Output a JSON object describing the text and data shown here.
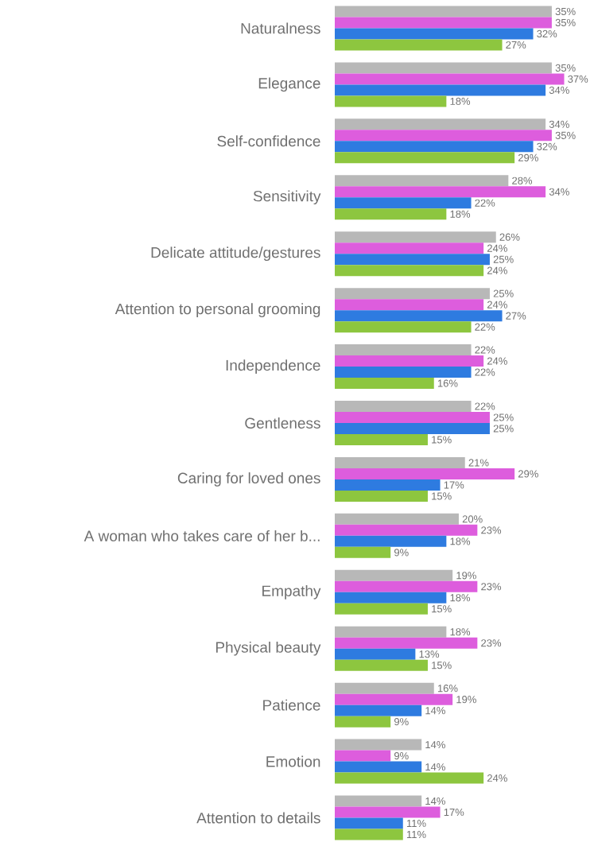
{
  "chart_data": {
    "type": "bar",
    "orientation": "horizontal",
    "categories": [
      "Naturalness",
      "Elegance",
      "Self-confidence",
      "Sensitivity",
      "Delicate attitude/gestures",
      "Attention to personal grooming",
      "Independence",
      "Gentleness",
      "Caring for loved ones",
      "A woman who takes care of her b...",
      "Empathy",
      "Physical beauty",
      "Patience",
      "Emotion",
      "Attention to details"
    ],
    "series": [
      {
        "color": "#b8b8b8",
        "values": [
          35,
          35,
          34,
          28,
          26,
          25,
          22,
          22,
          21,
          20,
          19,
          18,
          16,
          14,
          14
        ],
        "value_labels": [
          "35%",
          "35%",
          "34%",
          "28%",
          "26%",
          "25%",
          "22%",
          "22%",
          "21%",
          "20%",
          "19%",
          "18%",
          "16%",
          "14%",
          "14%"
        ]
      },
      {
        "color": "#dd5ddd",
        "values": [
          35,
          37,
          35,
          34,
          24,
          24,
          24,
          25,
          29,
          23,
          23,
          23,
          19,
          9,
          17
        ],
        "value_labels": [
          "35%",
          "37%",
          "35%",
          "34%",
          "24%",
          "24%",
          "24%",
          "25%",
          "29%",
          "23%",
          "23%",
          "23%",
          "19%",
          "9%",
          "17%"
        ]
      },
      {
        "color": "#2e7be0",
        "values": [
          32,
          34,
          32,
          22,
          25,
          27,
          22,
          25,
          17,
          18,
          18,
          13,
          14,
          14,
          11
        ],
        "value_labels": [
          "32%",
          "34%",
          "32%",
          "22%",
          "25%",
          "27%",
          "22%",
          "25%",
          "17%",
          "18%",
          "18%",
          "13%",
          "14%",
          "14%",
          "11%"
        ]
      },
      {
        "color": "#8dc63f",
        "values": [
          27,
          18,
          29,
          18,
          24,
          22,
          16,
          15,
          15,
          9,
          15,
          15,
          9,
          24,
          11
        ],
        "value_labels": [
          "27%",
          "18%",
          "29%",
          "18%",
          "24%",
          "22%",
          "16%",
          "15%",
          "15%",
          "9%",
          "15%",
          "15%",
          "9%",
          "24%",
          "11%"
        ]
      }
    ],
    "data_labels": false
  }
}
